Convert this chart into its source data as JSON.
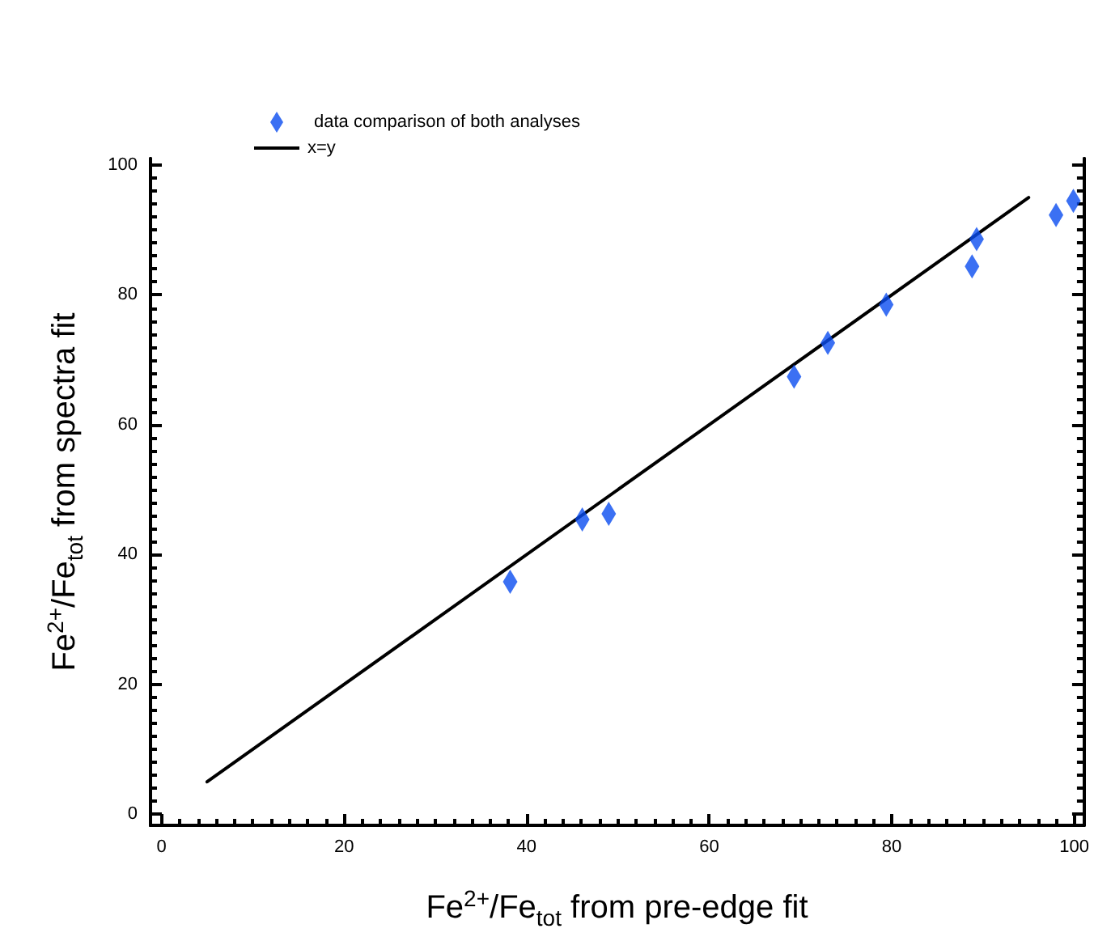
{
  "chart_data": {
    "type": "scatter",
    "xlabel": "Fe$^{2+}$/Fe$_{tot}$ from pre-edge fit",
    "ylabel": "Fe$^{2+}$/Fe$_{tot}$ from spectra fit",
    "series": [
      {
        "name": "data comparison of both analyses",
        "type": "scatter",
        "marker": "diamond",
        "color": "#0a4cf0",
        "x": [
          38.2,
          46.1,
          49.0,
          69.3,
          73.0,
          79.4,
          88.8,
          89.3,
          98.0,
          99.9
        ],
        "values": [
          35.8,
          45.4,
          46.3,
          67.4,
          72.6,
          78.5,
          84.4,
          88.6,
          92.3,
          94.5
        ]
      },
      {
        "name": "x=y",
        "type": "line",
        "marker": "none",
        "line_style": "solid",
        "color": "#000000",
        "x": [
          5,
          95
        ],
        "values": [
          5,
          95
        ]
      }
    ],
    "xlim": [
      -1.2,
      101
    ],
    "ylim": [
      -1.7,
      101
    ],
    "xticks": [
      0,
      20,
      40,
      60,
      80,
      100
    ],
    "yticks": [
      0,
      20,
      40,
      60,
      80,
      100
    ],
    "grid": false,
    "legend": "top left"
  }
}
